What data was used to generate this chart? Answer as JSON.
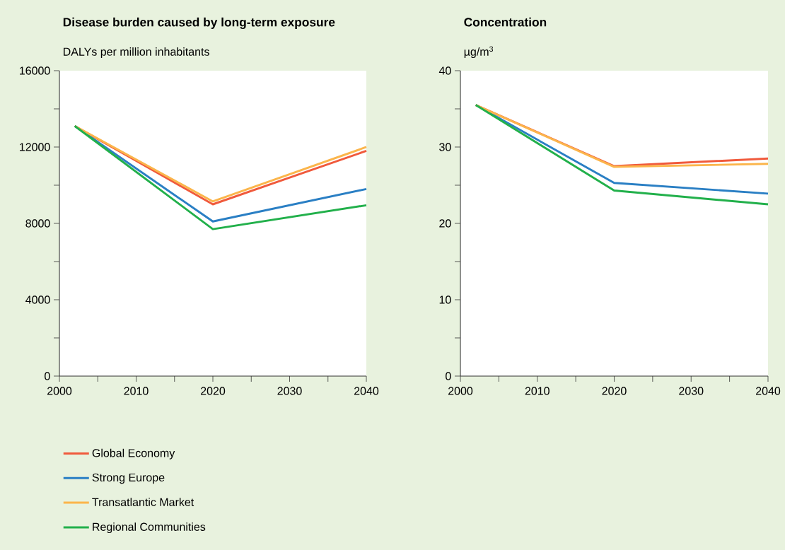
{
  "chart_data": [
    {
      "type": "line",
      "title": "Disease burden caused by long-term exposure",
      "ylabel": "DALYs per million inhabitants",
      "x": [
        2002,
        2020,
        2040
      ],
      "xlim": [
        2000,
        2040
      ],
      "xticks": [
        2000,
        {
          "value": 2005,
          "label": null
        },
        2010,
        {
          "value": 2015,
          "label": null
        },
        2020,
        {
          "value": 2025,
          "label": null
        },
        2030,
        {
          "value": 2035,
          "label": null
        },
        2040
      ],
      "ylim": [
        0,
        16000
      ],
      "yticks": [
        0,
        {
          "value": 2000,
          "label": null
        },
        4000,
        {
          "value": 6000,
          "label": null
        },
        8000,
        {
          "value": 10000,
          "label": null
        },
        12000,
        {
          "value": 14000,
          "label": null
        },
        16000
      ],
      "grid": false,
      "legend": "bottom",
      "line_style": "solid",
      "series": [
        {
          "name": "Global Economy",
          "color": "#f05a3c",
          "values": [
            13100,
            9000,
            11800
          ]
        },
        {
          "name": "Strong Europe",
          "color": "#2a7fc4",
          "values": [
            13100,
            8100,
            9800
          ]
        },
        {
          "name": "Transatlantic Market",
          "color": "#fbb54b",
          "values": [
            13100,
            9150,
            12000
          ]
        },
        {
          "name": "Regional Communities",
          "color": "#22b04b",
          "values": [
            13100,
            7700,
            8950
          ]
        }
      ]
    },
    {
      "type": "line",
      "title": "Concentration",
      "ylabel": "µg/m$^{3}$",
      "x": [
        2002,
        2020,
        2040
      ],
      "xlim": [
        2000,
        2040
      ],
      "xticks": [
        2000,
        {
          "value": 2005,
          "label": null
        },
        2010,
        {
          "value": 2015,
          "label": null
        },
        2020,
        {
          "value": 2025,
          "label": null
        },
        2030,
        {
          "value": 2035,
          "label": null
        },
        2040
      ],
      "ylim": [
        0,
        40
      ],
      "yticks": [
        0,
        {
          "value": 5,
          "label": null
        },
        10,
        {
          "value": 15,
          "label": null
        },
        20,
        {
          "value": 25,
          "label": null
        },
        30,
        {
          "value": 35,
          "label": null
        },
        40
      ],
      "grid": false,
      "legend": false,
      "line_style": "solid",
      "series": [
        {
          "color": "#f05a3c",
          "values": [
            35.5,
            27.5,
            28.5
          ]
        },
        {
          "color": "#2a7fc4",
          "values": [
            35.5,
            25.3,
            23.9
          ]
        },
        {
          "color": "#fbb54b",
          "values": [
            35.5,
            27.4,
            27.8
          ]
        },
        {
          "color": "#22b04b",
          "values": [
            35.5,
            24.3,
            22.5
          ]
        }
      ]
    }
  ]
}
